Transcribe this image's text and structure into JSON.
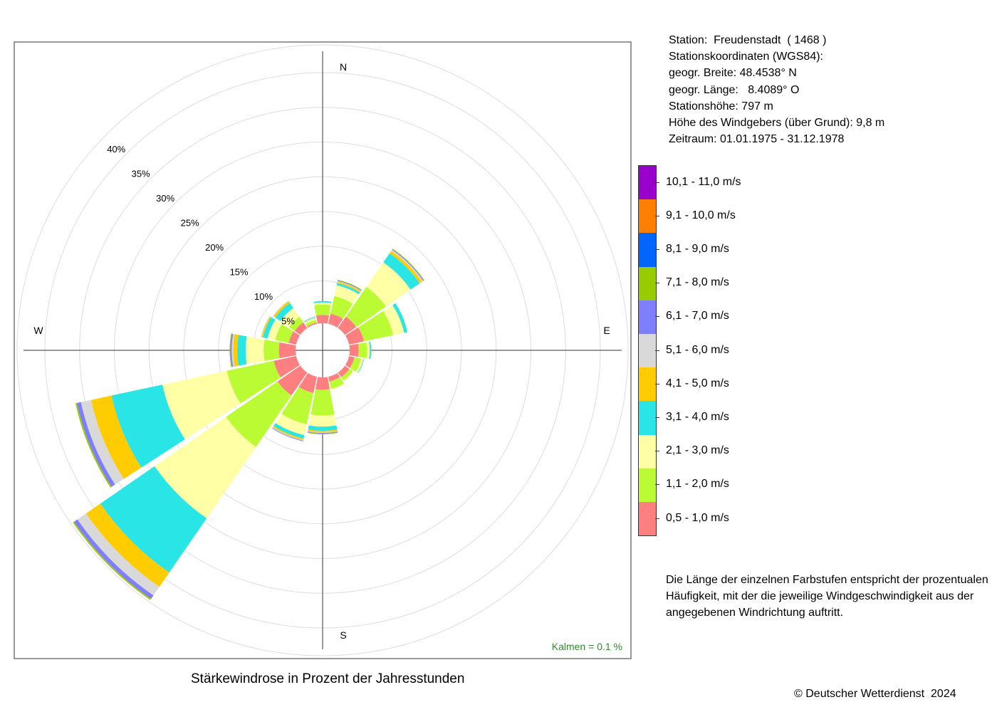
{
  "title": "Stärkewindrose in Prozent der Jahresstunden",
  "copyright": "© Deutscher Wetterdienst  2024",
  "station_info": [
    "Station:  Freudenstadt  ( 1468 )",
    "Stationskoordinaten (WGS84):",
    "geogr. Breite: 48.4538° N",
    "geogr. Länge:   8.4089° O",
    "Stationshöhe: 797 m",
    "Höhe des Windgebers (über Grund): 9,8 m",
    "Zeitraum: 01.01.1975 - 31.12.1978"
  ],
  "note": "Die Länge der einzelnen Farbstufen entspricht der prozentualen Häufigkeit, mit der die jeweilige Windgeschwindigkeit aus der angegebenen Windrichtung auftritt.",
  "calm_label": "Kalmen  =  0.1 %",
  "colors": {
    "calm_text": "#2e8b2e",
    "grid": "#dddddd",
    "axis": "#333333",
    "frame": "#333333"
  },
  "chart_data": {
    "type": "wind-rose",
    "title": "Stärkewindrose in Prozent der Jahresstunden",
    "directions": [
      "N",
      "NNO",
      "NO",
      "ONO",
      "O",
      "OSO",
      "SO",
      "SSO",
      "S",
      "SSW",
      "SW",
      "WSW",
      "W",
      "WNW",
      "NW",
      "NNW"
    ],
    "direction_angles_deg": [
      0,
      22.5,
      45,
      67.5,
      90,
      112.5,
      135,
      157.5,
      180,
      202.5,
      225,
      247.5,
      270,
      292.5,
      315,
      337.5
    ],
    "compass_labels": [
      "N",
      "E",
      "S",
      "W"
    ],
    "radial_ticks": [
      5,
      10,
      15,
      20,
      25,
      30,
      35,
      40
    ],
    "radial_tick_labels": [
      "5%",
      "10%",
      "15%",
      "20%",
      "25%",
      "30%",
      "35%",
      "40%"
    ],
    "calm_percent": 0.1,
    "speed_classes": [
      {
        "label": "0,5 - 1,0 m/s",
        "color": "#fd7f7f"
      },
      {
        "label": "1,1 - 2,0 m/s",
        "color": "#bbfb33"
      },
      {
        "label": "2,1 - 3,0 m/s",
        "color": "#ffffa6"
      },
      {
        "label": "3,1 - 4,0 m/s",
        "color": "#2ae5e5"
      },
      {
        "label": "4,1 - 5,0 m/s",
        "color": "#ffcc00"
      },
      {
        "label": "5,1 - 6,0 m/s",
        "color": "#d9d9d9"
      },
      {
        "label": "6,1 - 7,0 m/s",
        "color": "#7f7ffd"
      },
      {
        "label": "7,1 - 8,0 m/s",
        "color": "#99cc00"
      },
      {
        "label": "8,1 - 9,0 m/s",
        "color": "#0066ff"
      },
      {
        "label": "9,1 - 10,0 m/s",
        "color": "#ff8000"
      },
      {
        "label": "10,1 - 11,0 m/s",
        "color": "#9900cc"
      }
    ],
    "series": [
      {
        "direction": "N",
        "values": [
          1.2,
          1.5,
          0.3,
          0.2,
          0,
          0,
          0,
          0,
          0,
          0,
          0
        ]
      },
      {
        "direction": "NNO",
        "values": [
          1.5,
          2.6,
          1.6,
          0.3,
          0.2,
          0.1,
          0.1,
          0.1,
          0,
          0,
          0
        ]
      },
      {
        "direction": "NO",
        "values": [
          2.0,
          5.2,
          4.3,
          1.6,
          0.4,
          0.2,
          0.1,
          0.1,
          0,
          0,
          0
        ]
      },
      {
        "direction": "ONO",
        "values": [
          2.2,
          4.3,
          1.6,
          0.5,
          0,
          0,
          0,
          0,
          0,
          0,
          0
        ]
      },
      {
        "direction": "O",
        "values": [
          1.3,
          1.2,
          0.4,
          0.2,
          0,
          0,
          0,
          0,
          0,
          0,
          0
        ]
      },
      {
        "direction": "OSO",
        "values": [
          0.8,
          1.0,
          0.3,
          0.1,
          0,
          0,
          0,
          0,
          0,
          0,
          0
        ]
      },
      {
        "direction": "SO",
        "values": [
          0.8,
          0.6,
          0.1,
          0,
          0,
          0,
          0,
          0,
          0,
          0,
          0
        ]
      },
      {
        "direction": "SSO",
        "values": [
          0.7,
          1.1,
          0.1,
          0,
          0,
          0,
          0,
          0,
          0,
          0,
          0
        ]
      },
      {
        "direction": "S",
        "values": [
          1.8,
          3.7,
          1.6,
          0.6,
          0.2,
          0.1,
          0.1,
          0.1,
          0,
          0,
          0
        ]
      },
      {
        "direction": "SSW",
        "values": [
          2.4,
          4.6,
          1.6,
          0.5,
          0.2,
          0.1,
          0.1,
          0,
          0,
          0,
          0
        ]
      },
      {
        "direction": "SW",
        "values": [
          4.0,
          9.0,
          12.5,
          9.5,
          2.5,
          1.5,
          0.6,
          0.2,
          0,
          0,
          0
        ]
      },
      {
        "direction": "WSW",
        "values": [
          3.3,
          6.9,
          9.5,
          7.5,
          3.0,
          1.5,
          0.6,
          0.2,
          0,
          0,
          0
        ]
      },
      {
        "direction": "W",
        "values": [
          2.4,
          2.2,
          2.6,
          1.2,
          0.6,
          0.2,
          0.2,
          0.1,
          0,
          0,
          0
        ]
      },
      {
        "direction": "WNW",
        "values": [
          1.1,
          2.0,
          1.1,
          0.7,
          0.2,
          0.1,
          0,
          0,
          0,
          0,
          0
        ]
      },
      {
        "direction": "NW",
        "values": [
          1.0,
          1.0,
          1.5,
          0.9,
          0.3,
          0.1,
          0,
          0,
          0,
          0,
          0
        ]
      },
      {
        "direction": "NNW",
        "values": [
          0.2,
          0.4,
          0.3,
          0.1,
          0,
          0,
          0,
          0,
          0,
          0,
          0
        ]
      }
    ]
  }
}
